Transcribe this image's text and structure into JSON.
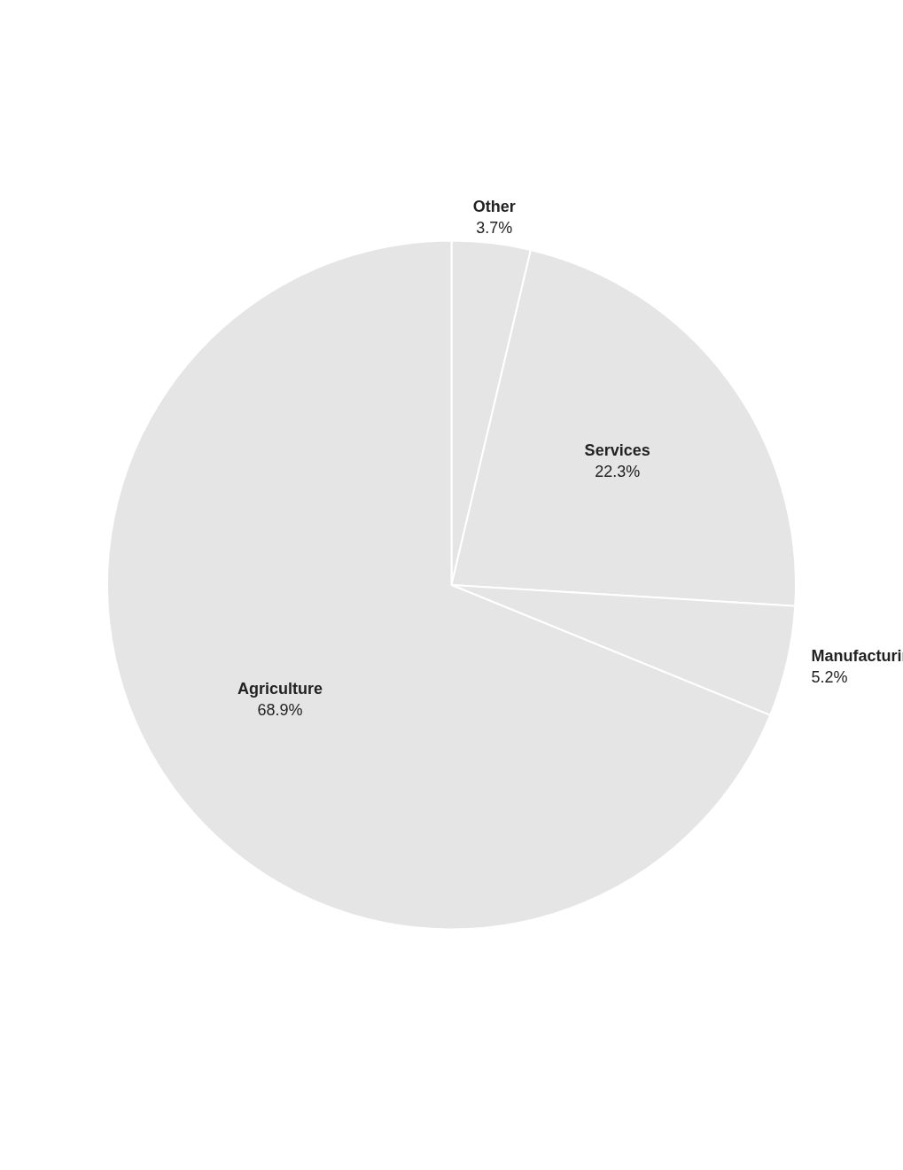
{
  "chart_data": {
    "type": "pie",
    "categories": [
      "Other",
      "Services",
      "Manufacturing",
      "Agriculture"
    ],
    "values": [
      3.7,
      22.3,
      5.2,
      68.9
    ],
    "value_labels": [
      "3.7%",
      "22.3%",
      "5.2%",
      "68.9%"
    ],
    "data_labels": true
  }
}
